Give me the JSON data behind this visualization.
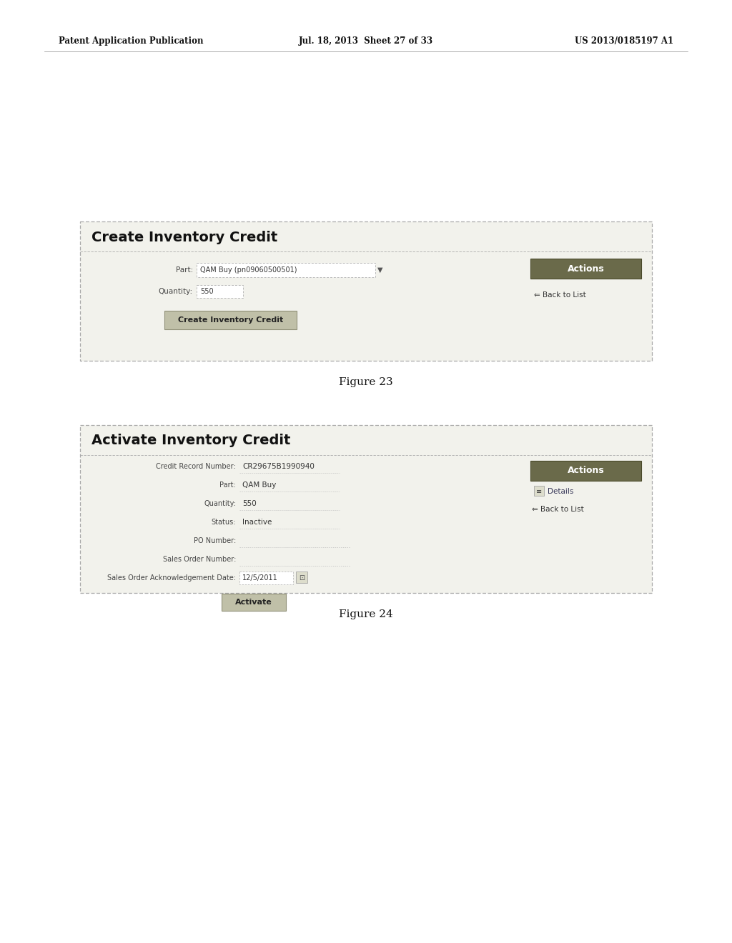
{
  "background_color": "#f0f0e8",
  "page_background": "#ffffff",
  "page_header_left": "Patent Application Publication",
  "page_header_center": "Jul. 18, 2013  Sheet 27 of 33",
  "page_header_right": "US 2013/0185197 A1",
  "figure1": {
    "title": "Create Inventory Credit",
    "caption": "Figure 23",
    "fields": [
      {
        "label": "Part:",
        "value": "QAM Buy (pn09060500501)",
        "has_dropdown": true
      },
      {
        "label": "Quantity:",
        "value": "550"
      }
    ],
    "button_text": "Create Inventory Credit",
    "actions_label": "Actions",
    "back_to_list": "⇐ Back to List"
  },
  "figure2": {
    "title": "Activate Inventory Credit",
    "caption": "Figure 24",
    "fields": [
      {
        "label": "Credit Record Number:",
        "value": "CR29675B1990940"
      },
      {
        "label": "Part:",
        "value": "QAM Buy"
      },
      {
        "label": "Quantity:",
        "value": "550"
      },
      {
        "label": "Status:",
        "value": "Inactive"
      },
      {
        "label": "PO Number:",
        "value": ""
      },
      {
        "label": "Sales Order Number:",
        "value": ""
      },
      {
        "label": "Sales Order Acknowledgement Date:",
        "value": "12/5/2011"
      }
    ],
    "button_text": "Activate",
    "actions_label": "Actions",
    "back_to_list": "⇐ Back to List",
    "details": "Details"
  }
}
